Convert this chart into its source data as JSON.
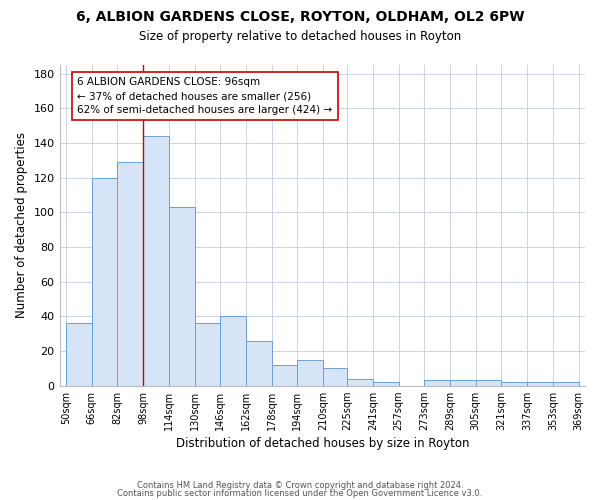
{
  "title1": "6, ALBION GARDENS CLOSE, ROYTON, OLDHAM, OL2 6PW",
  "title2": "Size of property relative to detached houses in Royton",
  "xlabel": "Distribution of detached houses by size in Royton",
  "ylabel": "Number of detached properties",
  "bar_edges": [
    50,
    66,
    82,
    98,
    114,
    130,
    146,
    162,
    178,
    194,
    210,
    225,
    241,
    257,
    273,
    289,
    305,
    321,
    337,
    353,
    369
  ],
  "bar_heights": [
    36,
    120,
    129,
    144,
    103,
    36,
    40,
    26,
    12,
    15,
    10,
    4,
    2,
    0,
    3,
    3,
    3,
    2,
    2,
    2
  ],
  "bar_color": "#d6e4f7",
  "bar_edgecolor": "#6b9fd4",
  "grid_color": "#c8d4e8",
  "background_color": "#ffffff",
  "plot_bg_color": "#ffffff",
  "property_line_x": 98,
  "property_line_color": "#cc0000",
  "annotation_text": "6 ALBION GARDENS CLOSE: 96sqm\n← 37% of detached houses are smaller (256)\n62% of semi-detached houses are larger (424) →",
  "annotation_box_facecolor": "#ffffff",
  "annotation_box_edgecolor": "#cc0000",
  "footer1": "Contains HM Land Registry data © Crown copyright and database right 2024.",
  "footer2": "Contains public sector information licensed under the Open Government Licence v3.0.",
  "ylim": [
    0,
    185
  ],
  "yticks": [
    0,
    20,
    40,
    60,
    80,
    100,
    120,
    140,
    160,
    180
  ]
}
